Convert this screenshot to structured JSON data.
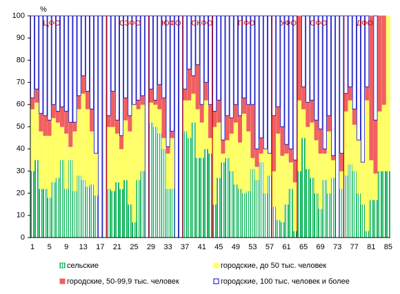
{
  "chart_data": {
    "type": "stacked_bar",
    "y_unit": "%",
    "categories": [
      1,
      null,
      null,
      null,
      5,
      null,
      null,
      null,
      9,
      null,
      null,
      null,
      13,
      null,
      null,
      null,
      17,
      null,
      null,
      null,
      21,
      null,
      null,
      null,
      25,
      null,
      null,
      null,
      29,
      null,
      null,
      null,
      33,
      null,
      null,
      null,
      37,
      null,
      null,
      null,
      41,
      null,
      null,
      null,
      45,
      null,
      null,
      null,
      49,
      null,
      null,
      null,
      53,
      null,
      null,
      null,
      57,
      null,
      null,
      null,
      61,
      null,
      null,
      null,
      65,
      null,
      null,
      null,
      69,
      null,
      null,
      null,
      73,
      null,
      null,
      null,
      77,
      null,
      null,
      null,
      81,
      null,
      null,
      null,
      85
    ],
    "annotations": [
      "ЦФО",
      "СЗФО",
      "ЮФО",
      "СКФО",
      "ПФО",
      "УФО",
      "СФО",
      "ДФО"
    ],
    "ylim": [
      0,
      100
    ],
    "yticks": [
      0,
      10,
      20,
      30,
      40,
      50,
      60,
      70,
      80,
      90,
      100
    ],
    "grid": false,
    "series": [
      {
        "name": "сельские",
        "color": "#00b050",
        "values": [
          30,
          35,
          22,
          22,
          18,
          25,
          27,
          35,
          22,
          35,
          21,
          28,
          26,
          23,
          24,
          19,
          0,
          0,
          22,
          21,
          25,
          22,
          26,
          15,
          7,
          26,
          30,
          0,
          52,
          50,
          47,
          40,
          22,
          22,
          0,
          0,
          48,
          45,
          52,
          36,
          36,
          40,
          38,
          15,
          27,
          34,
          36,
          30,
          24,
          22,
          20,
          21,
          31,
          26,
          34,
          20,
          28,
          14,
          8,
          7,
          15,
          22,
          3,
          30,
          45,
          31,
          27,
          20,
          13,
          26,
          20,
          27,
          0,
          22,
          28,
          33,
          30,
          20,
          15,
          3,
          17,
          17,
          30,
          30,
          30
        ]
      },
      {
        "name": "городские, до 50 тыс. человек",
        "color": "#ffff66",
        "values": [
          28,
          26,
          26,
          24,
          28,
          29,
          25,
          15,
          25,
          6,
          27,
          30,
          39,
          35,
          24,
          19,
          0,
          0,
          28,
          29,
          22,
          18,
          27,
          33,
          53,
          32,
          30,
          0,
          9,
          10,
          11,
          5,
          16,
          23,
          0,
          0,
          14,
          17,
          13,
          22,
          16,
          22,
          7,
          35,
          25,
          4,
          8,
          17,
          28,
          21,
          36,
          27,
          5,
          6,
          4,
          20,
          10,
          16,
          39,
          30,
          23,
          12,
          22,
          32,
          13,
          19,
          25,
          24,
          25,
          12,
          28,
          8,
          0,
          8,
          29,
          29,
          21,
          24,
          19,
          59,
          18,
          12,
          27,
          30,
          70
        ]
      },
      {
        "name": "городские, 50-99,9 тыс. человек",
        "color": "#f06060",
        "values": [
          5,
          6,
          8,
          9,
          7,
          6,
          5,
          9,
          10,
          11,
          4,
          6,
          8,
          8,
          10,
          0,
          0,
          0,
          5,
          16,
          6,
          6,
          10,
          7,
          0,
          4,
          4,
          0,
          6,
          2,
          11,
          18,
          3,
          3,
          0,
          0,
          5,
          14,
          8,
          20,
          8,
          8,
          15,
          7,
          10,
          6,
          11,
          7,
          8,
          12,
          7,
          12,
          24,
          8,
          7,
          0,
          0,
          25,
          12,
          13,
          4,
          6,
          10,
          38,
          10,
          11,
          10,
          9,
          11,
          2,
          7,
          2,
          0,
          8,
          8,
          6,
          7,
          0,
          0,
          6,
          65,
          24,
          43,
          40,
          0
        ]
      },
      {
        "name": "городские, 100 тыс. человек и более",
        "color": "#0000c0",
        "values": [
          37,
          33,
          44,
          45,
          47,
          40,
          43,
          41,
          43,
          48,
          48,
          36,
          27,
          34,
          42,
          62,
          100,
          100,
          45,
          34,
          47,
          54,
          37,
          45,
          40,
          38,
          36,
          100,
          33,
          38,
          31,
          37,
          59,
          52,
          100,
          100,
          33,
          24,
          27,
          22,
          40,
          30,
          40,
          43,
          38,
          56,
          45,
          46,
          40,
          45,
          37,
          40,
          40,
          60,
          55,
          60,
          62,
          45,
          41,
          50,
          58,
          60,
          65,
          0,
          32,
          39,
          38,
          47,
          51,
          60,
          45,
          63,
          100,
          62,
          35,
          32,
          42,
          56,
          66,
          32,
          0,
          47,
          0,
          0,
          0
        ]
      }
    ]
  }
}
